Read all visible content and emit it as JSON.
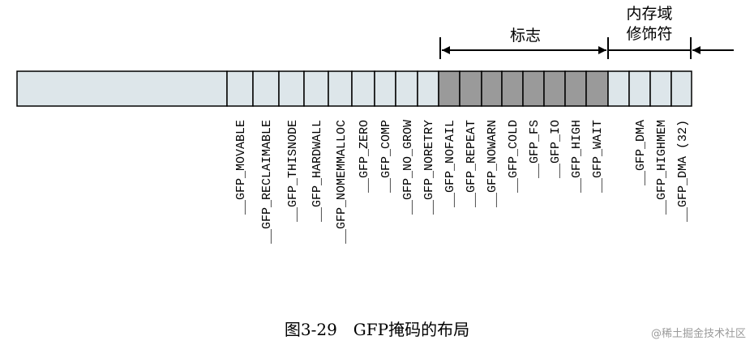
{
  "caption": "图3-29　GFP掩码的布局",
  "watermark": "@稀土掘金技术社区",
  "brackets": {
    "flags_label": "标志",
    "zone_label_line1": "内存域",
    "zone_label_line2": "修饰符"
  },
  "flags": [
    "__GFP_MOVABLE",
    "__GFP_RECLAIMABLE",
    "__GFP_THISNODE",
    "__GFP_HARDWALL",
    "__GFP_NOMEMMALLOC",
    "__GFP_ZERO",
    "__GFP_COMP",
    "__GFP_NO_GROW",
    "__GFP_NORETRY",
    "__GFP_NOFAIL",
    "__GFP_REPEAT",
    "__GFP_NOWARN",
    "__GFP_COLD",
    "__GFP_FS",
    "__GFP_IO",
    "__GFP_HIGH",
    "__GFP_WAIT",
    "__GFP_DMA",
    "__GFP_HIGHMEM",
    "__GFP_DMA (32)"
  ],
  "colors": {
    "light_cell": "#dde6ea",
    "dark_cell": "#9a9a9a",
    "line": "#000000"
  }
}
